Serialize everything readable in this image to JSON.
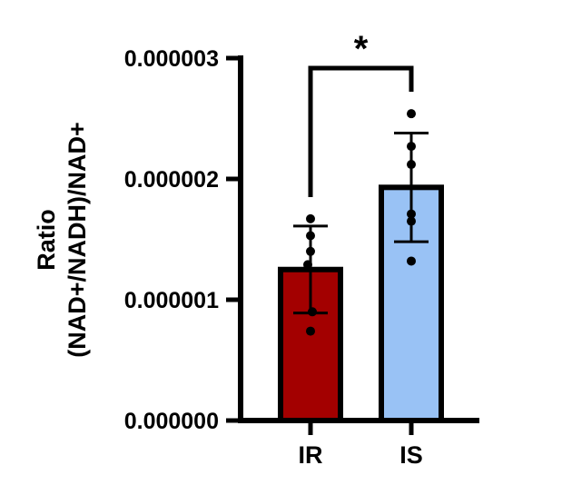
{
  "chart_data": {
    "type": "bar",
    "title": "",
    "xlabel": "",
    "ylabel_lines": [
      "Ratio",
      "(NAD+/NADH)/NAD+"
    ],
    "ylim": [
      0,
      3e-06
    ],
    "yticks": [
      {
        "value": 0,
        "label": "0.000000"
      },
      {
        "value": 1e-06,
        "label": "0.000001"
      },
      {
        "value": 2e-06,
        "label": "0.000002"
      },
      {
        "value": 3e-06,
        "label": "0.000003"
      }
    ],
    "categories": [
      "IR",
      "IS"
    ],
    "bars": [
      {
        "category": "IR",
        "mean": 1.25e-06,
        "sd": 3.6e-07,
        "color": "#a30000",
        "points": [
          1.67e-06,
          1.53e-06,
          1.4e-06,
          1.29e-06,
          9e-07,
          7.4e-07
        ]
      },
      {
        "category": "IS",
        "mean": 1.93e-06,
        "sd": 4.5e-07,
        "color": "#99c2f5",
        "points": [
          2.54e-06,
          2.27e-06,
          2.12e-06,
          1.71e-06,
          1.65e-06,
          1.32e-06
        ]
      }
    ],
    "significance": {
      "from": "IR",
      "to": "IS",
      "label": "*"
    },
    "grid": false,
    "legend": "none"
  }
}
